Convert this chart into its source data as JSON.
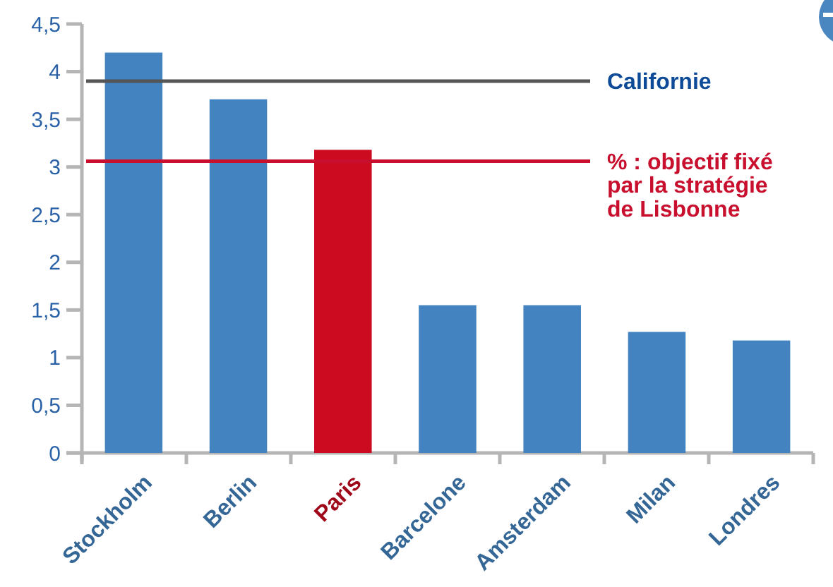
{
  "chart_data": {
    "type": "bar",
    "categories": [
      "Stockholm",
      "Berlin",
      "Paris",
      "Barcelone",
      "Amsterdam",
      "Milan",
      "Londres"
    ],
    "values": [
      4.2,
      3.71,
      3.18,
      1.55,
      1.55,
      1.27,
      1.18
    ],
    "colors": [
      "#4383c0",
      "#4383c0",
      "#cc0a20",
      "#4383c0",
      "#4383c0",
      "#4383c0",
      "#4383c0"
    ],
    "ylim": [
      0,
      4.5
    ],
    "yticks": [
      0,
      {
        "value": 0.5,
        "label": "0,5"
      },
      1,
      {
        "value": 1.5,
        "label": "1,5"
      },
      2,
      {
        "value": 2.5,
        "label": "2,5"
      },
      3,
      {
        "value": 3.5,
        "label": "3,5"
      },
      4,
      {
        "value": 4.5,
        "label": "4,5"
      }
    ],
    "ref_lines": [
      {
        "axis": "y",
        "value": 3.9,
        "label": "Californie",
        "color": "#555555"
      },
      {
        "axis": "y",
        "value": 3.06,
        "label": "% : objectif fixé\npar la stratégie\nde Lisbonne",
        "color": "#c8102e"
      }
    ],
    "grid": false
  }
}
